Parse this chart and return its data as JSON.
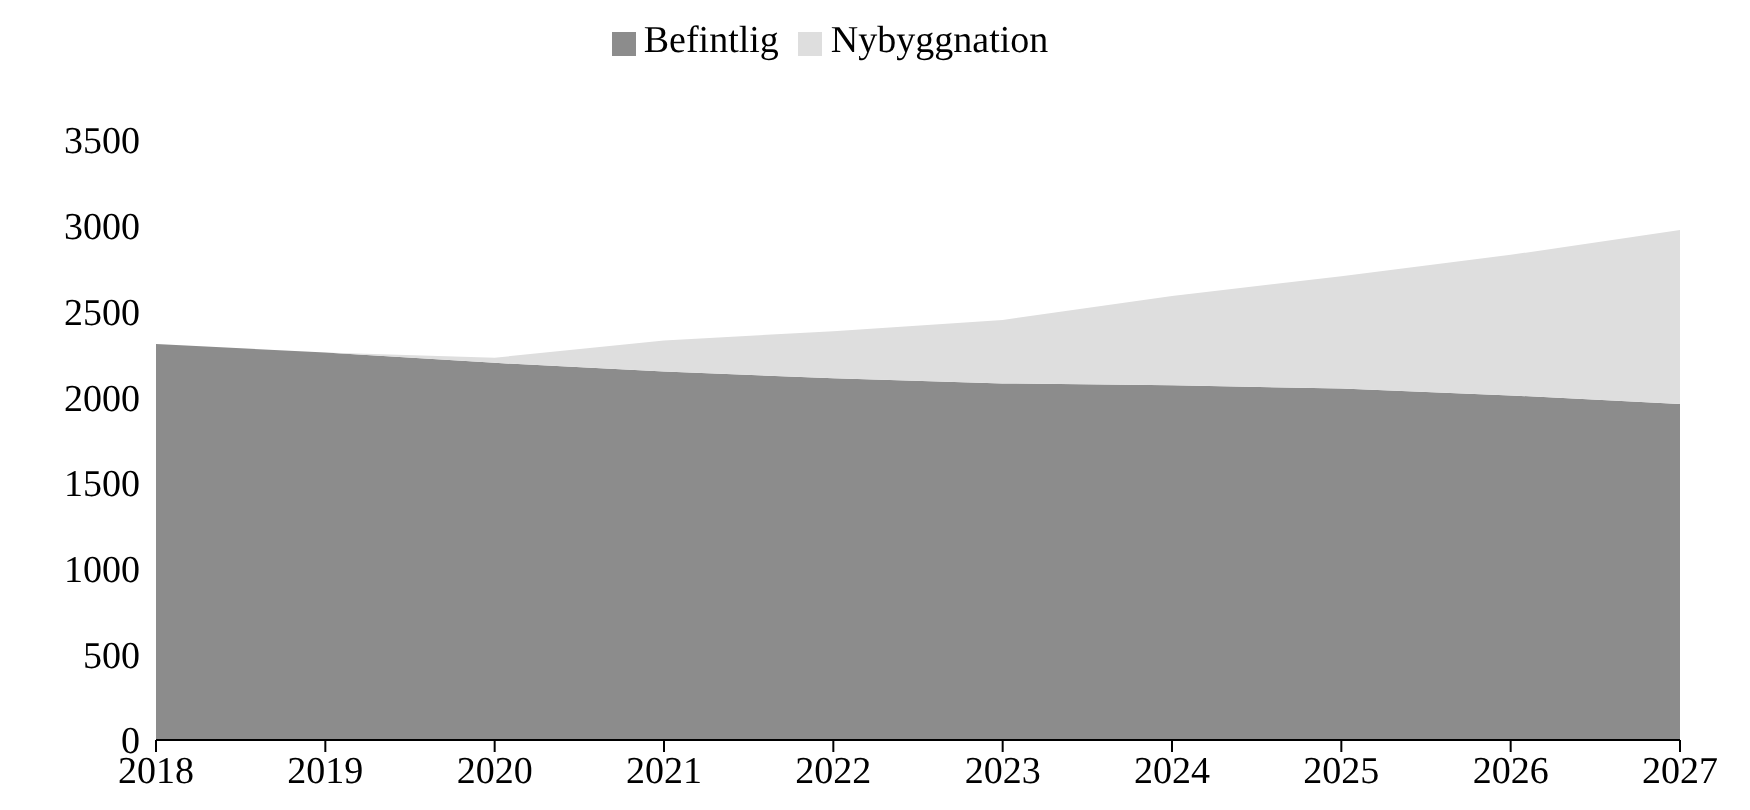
{
  "chart_data": {
    "type": "area",
    "stacked": true,
    "categories": [
      "2018",
      "2019",
      "2020",
      "2021",
      "2022",
      "2023",
      "2024",
      "2025",
      "2026",
      "2027"
    ],
    "series": [
      {
        "name": "Befintlig",
        "color": "#8c8c8c",
        "values": [
          2310,
          2260,
          2200,
          2150,
          2110,
          2080,
          2070,
          2050,
          2010,
          1960
        ]
      },
      {
        "name": "Nybyggnation",
        "color": "#dedede",
        "values": [
          0,
          0,
          30,
          180,
          275,
          370,
          520,
          655,
          820,
          1015
        ]
      }
    ],
    "ylim": [
      0,
      3500
    ],
    "yticks": [
      0,
      500,
      1000,
      1500,
      2000,
      2500,
      3000,
      3500
    ],
    "grid": false,
    "legend": "top"
  }
}
